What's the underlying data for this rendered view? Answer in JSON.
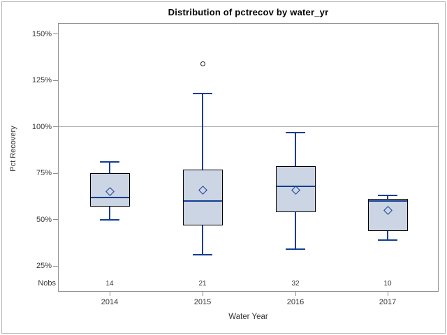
{
  "title": "Distribution of pctrecov by water_yr",
  "axes": {
    "y_label": "Pct Recovery",
    "x_label": "Water Year"
  },
  "nobs_label": "Nobs",
  "colors": {
    "box_fill": "#ccd5e4",
    "box_border": "#000000",
    "whisker": "#123d94",
    "median": "#123d94",
    "mean_marker": "#123d94",
    "outlier": "#1c1c1c",
    "frame": "#8e8e8e",
    "reference_line": "#ababab",
    "text": "#363636",
    "title_text": "#000000",
    "outer_border": "#b3b3b3"
  },
  "chart_data": {
    "type": "box",
    "title": "Distribution of pctrecov by water_yr",
    "xlabel": "Water Year",
    "ylabel": "Pct Recovery",
    "y_unit": "%",
    "ylim": [
      11,
      156
    ],
    "yticks": [
      25,
      50,
      75,
      100,
      125,
      150
    ],
    "y_ticks": [
      {
        "value": 150,
        "label": "150%"
      },
      {
        "value": 125,
        "label": "125%"
      },
      {
        "value": 100,
        "label": "100%"
      },
      {
        "value": 75,
        "label": "75%"
      },
      {
        "value": 50,
        "label": "50%"
      },
      {
        "value": 25,
        "label": "25%"
      }
    ],
    "reference_line_y": 100,
    "grid": "horizontal reference line at 100% only",
    "legend": "none",
    "categories": [
      "2014",
      "2015",
      "2016",
      "2017"
    ],
    "nobs": [
      14,
      21,
      32,
      10
    ],
    "series": [
      {
        "category": "2014",
        "nobs": 14,
        "whisker_low": 50,
        "q1": 57,
        "median": 62,
        "mean": 65,
        "q3": 75,
        "whisker_high": 81,
        "outliers": []
      },
      {
        "category": "2015",
        "nobs": 21,
        "whisker_low": 31,
        "q1": 47,
        "median": 60,
        "mean": 66,
        "q3": 77,
        "whisker_high": 118,
        "outliers": [
          134
        ]
      },
      {
        "category": "2016",
        "nobs": 32,
        "whisker_low": 34,
        "q1": 54,
        "median": 68,
        "mean": 66,
        "q3": 79,
        "whisker_high": 97,
        "outliers": []
      },
      {
        "category": "2017",
        "nobs": 10,
        "whisker_low": 39,
        "q1": 44,
        "median": 60,
        "mean": 55,
        "q3": 61,
        "whisker_high": 63,
        "outliers": []
      }
    ]
  }
}
